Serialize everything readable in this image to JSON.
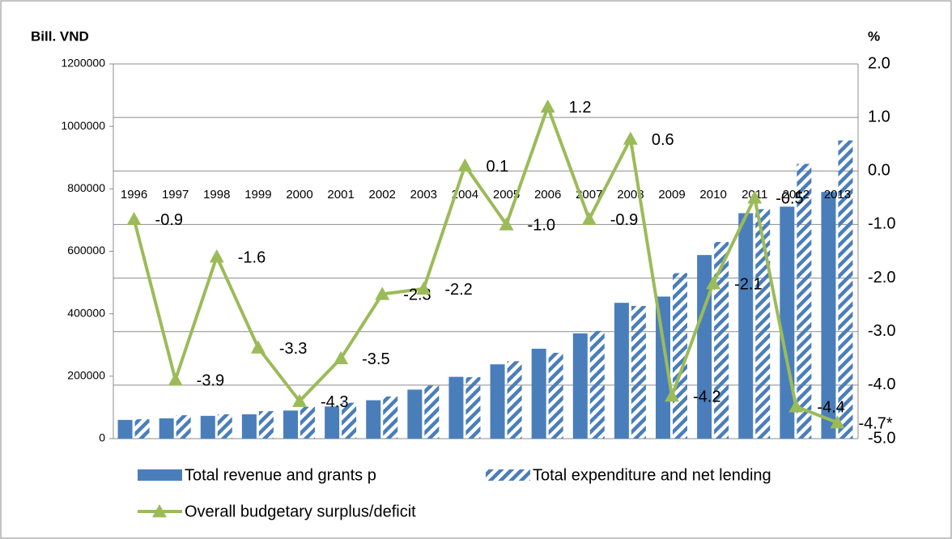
{
  "chart_data": {
    "type": "bar_line",
    "y_label": "Bill. VND",
    "y2_label": "%",
    "categories": [
      "1996",
      "1997",
      "1998",
      "1999",
      "2000",
      "2001",
      "2002",
      "2003",
      "2004",
      "2005",
      "2006",
      "2007",
      "2008",
      "2009",
      "2010",
      "2011",
      "2012",
      "2013"
    ],
    "series": [
      {
        "name": "Total revenue and grants p",
        "color": "#4a7ebb",
        "type": "bar",
        "values": [
          60000,
          65000,
          73000,
          78000,
          90000,
          103000,
          123000,
          157000,
          198000,
          238000,
          288000,
          337000,
          435000,
          455000,
          588000,
          722000,
          743000,
          790000
        ]
      },
      {
        "name": "Total expenditure and net lending",
        "color": "#4a7ebb",
        "type": "bar",
        "hatched": true,
        "values": [
          62000,
          75000,
          78000,
          88000,
          102000,
          115000,
          135000,
          170000,
          197000,
          248000,
          275000,
          345000,
          425000,
          530000,
          630000,
          735000,
          880000,
          955000
        ]
      },
      {
        "name": "Overall budgetary surplus/deficit",
        "color": "#9bbb59",
        "type": "line",
        "axis": "y2",
        "marker": "triangle",
        "values": [
          -0.9,
          -3.9,
          -1.6,
          -3.3,
          -4.3,
          -3.5,
          -2.3,
          -2.2,
          0.1,
          -1.0,
          1.2,
          -0.9,
          0.6,
          -4.2,
          -2.1,
          -0.5,
          -4.4,
          -4.7
        ],
        "value_labels": [
          "-0.9",
          "-3.9",
          "-1.6",
          "-3.3",
          "-4.3",
          "-3.5",
          "-2.3",
          "-2.2",
          "0.1",
          "-1.0",
          "1.2",
          "-0.9",
          "0.6",
          "-4.2",
          "-2.1",
          "-0.5",
          "-4.4",
          "-4.7*"
        ]
      }
    ],
    "ylim": [
      0,
      1200000
    ],
    "yticks": [
      0,
      200000,
      400000,
      600000,
      800000,
      1000000,
      1200000
    ],
    "y2lim": [
      -5,
      2
    ],
    "y2ticks": [
      {
        "value": -5,
        "label": "-5.0"
      },
      {
        "value": -4,
        "label": "-4.0"
      },
      {
        "value": -3,
        "label": "-3.0"
      },
      {
        "value": -2,
        "label": "-2.0"
      },
      {
        "value": -1,
        "label": "-1.0"
      },
      {
        "value": 0,
        "label": "0.0"
      },
      {
        "value": 1,
        "label": "1.0"
      },
      {
        "value": 2,
        "label": "2.0"
      }
    ],
    "grid": true,
    "legend": "bottom"
  }
}
